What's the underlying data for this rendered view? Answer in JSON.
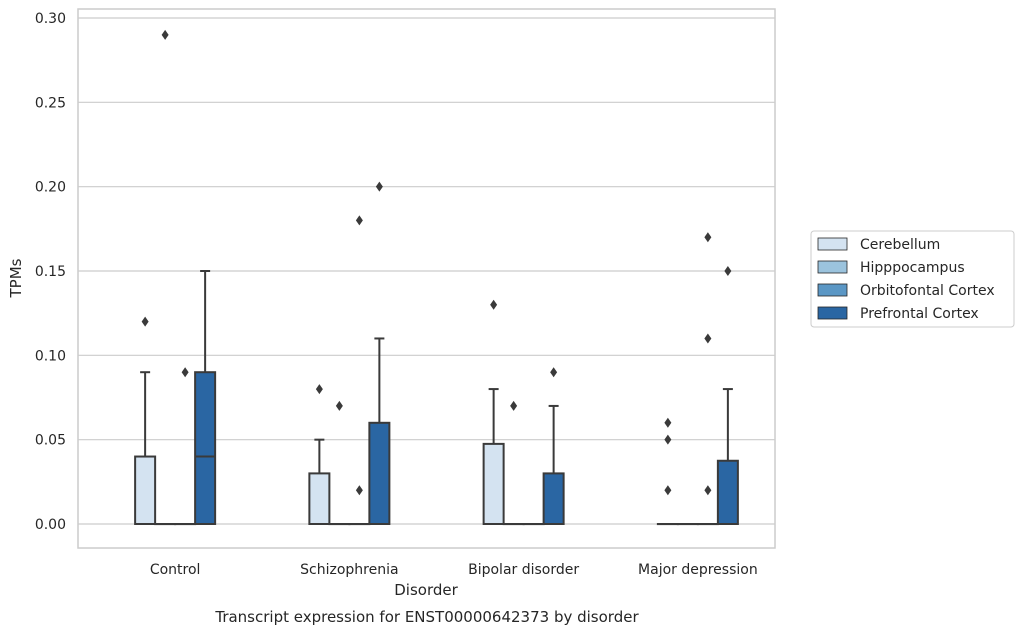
{
  "chart_data": {
    "type": "box",
    "title": "",
    "caption": "Transcript expression for ENST00000642373 by disorder",
    "xlabel": "Disorder",
    "ylabel": "TPMs",
    "ylim": [
      -0.014,
      0.305
    ],
    "yticks": [
      0.0,
      0.05,
      0.1,
      0.15,
      0.2,
      0.25,
      0.3
    ],
    "ytick_labels": [
      "0.00",
      "0.05",
      "0.10",
      "0.15",
      "0.20",
      "0.25",
      "0.30"
    ],
    "grid": "horizontal",
    "legend_position": "right",
    "categories": [
      "Control",
      "Schizophrenia",
      "Bipolar disorder",
      "Major depression"
    ],
    "series": [
      {
        "name": "Cerebellum",
        "color": "#d4e3f1",
        "boxes": [
          {
            "q1": 0.0,
            "median": 0.0,
            "q3": 0.04,
            "whisker_low": 0.0,
            "whisker_high": 0.09,
            "outliers": [
              0.12
            ]
          },
          {
            "q1": 0.0,
            "median": 0.0,
            "q3": 0.03,
            "whisker_low": 0.0,
            "whisker_high": 0.05,
            "outliers": [
              0.08
            ]
          },
          {
            "q1": 0.0,
            "median": 0.0,
            "q3": 0.0475,
            "whisker_low": 0.0,
            "whisker_high": 0.08,
            "outliers": [
              0.13
            ]
          },
          {
            "q1": 0.0,
            "median": 0.0,
            "q3": 0.0,
            "whisker_low": 0.0,
            "whisker_high": 0.0,
            "outliers": [
              0.06,
              0.05,
              0.02
            ]
          }
        ]
      },
      {
        "name": "Hipppocampus",
        "color": "#9bc3dd",
        "boxes": [
          {
            "q1": 0.0,
            "median": 0.0,
            "q3": 0.0,
            "whisker_low": 0.0,
            "whisker_high": 0.0,
            "outliers": [
              0.29
            ]
          },
          {
            "q1": 0.0,
            "median": 0.0,
            "q3": 0.0,
            "whisker_low": 0.0,
            "whisker_high": 0.0,
            "outliers": [
              0.07
            ]
          },
          {
            "q1": 0.0,
            "median": 0.0,
            "q3": 0.0,
            "whisker_low": 0.0,
            "whisker_high": 0.0,
            "outliers": [
              0.07
            ]
          },
          {
            "q1": 0.0,
            "median": 0.0,
            "q3": 0.0,
            "whisker_low": 0.0,
            "whisker_high": 0.0,
            "outliers": []
          }
        ]
      },
      {
        "name": "Orbitofontal Cortex",
        "color": "#5b97c5",
        "boxes": [
          {
            "q1": 0.0,
            "median": 0.0,
            "q3": 0.0,
            "whisker_low": 0.0,
            "whisker_high": 0.0,
            "outliers": [
              0.09
            ]
          },
          {
            "q1": 0.0,
            "median": 0.0,
            "q3": 0.0,
            "whisker_low": 0.0,
            "whisker_high": 0.0,
            "outliers": [
              0.18,
              0.02
            ]
          },
          {
            "q1": 0.0,
            "median": 0.0,
            "q3": 0.0,
            "whisker_low": 0.0,
            "whisker_high": 0.0,
            "outliers": []
          },
          {
            "q1": 0.0,
            "median": 0.0,
            "q3": 0.0,
            "whisker_low": 0.0,
            "whisker_high": 0.0,
            "outliers": [
              0.17,
              0.11,
              0.02
            ]
          }
        ]
      },
      {
        "name": "Prefrontal Cortex",
        "color": "#2a66a3",
        "boxes": [
          {
            "q1": 0.0,
            "median": 0.04,
            "q3": 0.09,
            "whisker_low": 0.0,
            "whisker_high": 0.15,
            "outliers": []
          },
          {
            "q1": 0.0,
            "median": 0.0,
            "q3": 0.06,
            "whisker_low": 0.0,
            "whisker_high": 0.11,
            "outliers": [
              0.2
            ]
          },
          {
            "q1": 0.0,
            "median": 0.0,
            "q3": 0.03,
            "whisker_low": 0.0,
            "whisker_high": 0.07,
            "outliers": [
              0.09
            ]
          },
          {
            "q1": 0.0,
            "median": 0.0,
            "q3": 0.0375,
            "whisker_low": 0.0,
            "whisker_high": 0.08,
            "outliers": [
              0.15
            ]
          }
        ]
      }
    ]
  }
}
